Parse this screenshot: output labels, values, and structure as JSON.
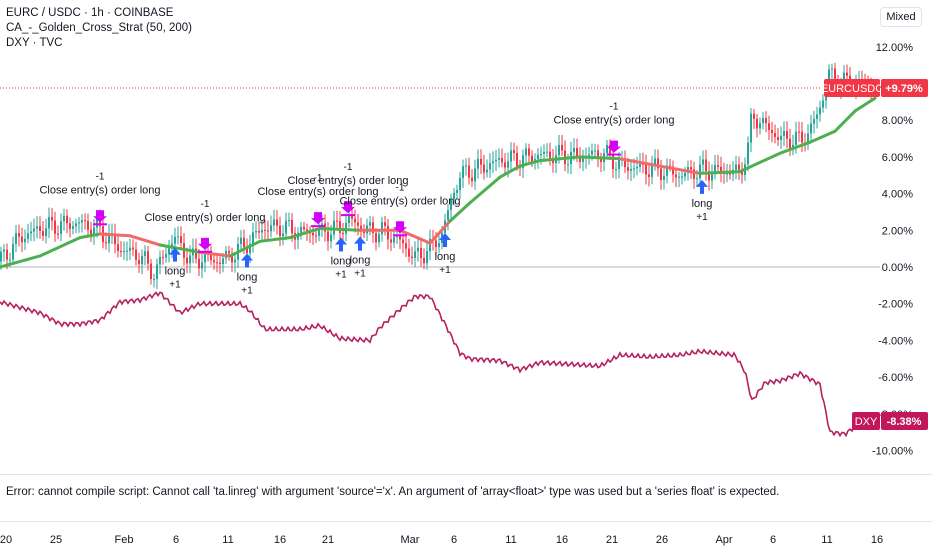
{
  "legend": {
    "symbol": "EURC / USDC · 1h · COINBASE",
    "strategy": "CA_-_Golden_Cross_Strat (50, 200)",
    "compare": "DXY · TVC"
  },
  "scale_mode_label": "Mixed",
  "error_message": "Error: cannot compile script: Cannot call 'ta.linreg' with argument 'source'='x'. An argument of 'array<float>' type was used but a 'series float' is expected.",
  "time_axis_labels": [
    "20",
    "25",
    "Feb",
    "6",
    "11",
    "16",
    "21",
    "Mar",
    "6",
    "11",
    "16",
    "21",
    "26",
    "Apr",
    "6",
    "11",
    "16"
  ],
  "price_axis_labels": [
    "12.00%",
    "10.00%",
    "8.00%",
    "6.00%",
    "4.00%",
    "2.00%",
    "0.00%",
    "-2.00%",
    "-4.00%",
    "-6.00%",
    "-8.00%",
    "-10.00%"
  ],
  "badges": {
    "eurcusdc": {
      "name": "EURCUSDC",
      "value": "+9.79%",
      "color": "#f23645"
    },
    "dxy": {
      "name": "DXY",
      "value": "-8.38%",
      "color": "#c2185b"
    }
  },
  "colors": {
    "up": "#26a69a",
    "down": "#f23645",
    "ma_up": "#4caf50",
    "ma_down": "#f06a6a",
    "dxy": "#b5205e",
    "entry": "#2962ff",
    "exit": "#d500f9"
  },
  "chart_data": {
    "type": "line",
    "title": "EURC / USDC · 1h · COINBASE",
    "ylim": [
      -11,
      12.5
    ],
    "series": [
      {
        "name": "EURCUSDC",
        "points": [
          [
            0,
            0.3
          ],
          [
            20,
            1.6
          ],
          [
            40,
            2.1
          ],
          [
            60,
            2.3
          ],
          [
            80,
            2.4
          ],
          [
            100,
            2.0
          ],
          [
            120,
            1.0
          ],
          [
            140,
            0.6
          ],
          [
            155,
            -0.4
          ],
          [
            165,
            0.8
          ],
          [
            175,
            1.6
          ],
          [
            190,
            0.4
          ],
          [
            205,
            0.5
          ],
          [
            220,
            0.3
          ],
          [
            235,
            0.8
          ],
          [
            250,
            1.4
          ],
          [
            262,
            2.1
          ],
          [
            280,
            2.2
          ],
          [
            300,
            1.9
          ],
          [
            320,
            1.9
          ],
          [
            340,
            2.1
          ],
          [
            350,
            2.6
          ],
          [
            365,
            2.0
          ],
          [
            385,
            1.9
          ],
          [
            400,
            1.4
          ],
          [
            415,
            0.5
          ],
          [
            430,
            1.0
          ],
          [
            442,
            1.8
          ],
          [
            452,
            3.8
          ],
          [
            460,
            5.0
          ],
          [
            480,
            5.4
          ],
          [
            500,
            5.8
          ],
          [
            520,
            5.9
          ],
          [
            540,
            6.1
          ],
          [
            560,
            6.1
          ],
          [
            580,
            6.0
          ],
          [
            600,
            6.2
          ],
          [
            610,
            6.0
          ],
          [
            620,
            5.5
          ],
          [
            640,
            5.4
          ],
          [
            660,
            5.3
          ],
          [
            680,
            5.0
          ],
          [
            700,
            5.3
          ],
          [
            720,
            5.2
          ],
          [
            740,
            5.2
          ],
          [
            748,
            6.4
          ],
          [
            752,
            8.3
          ],
          [
            765,
            7.7
          ],
          [
            780,
            7.0
          ],
          [
            800,
            6.9
          ],
          [
            810,
            7.4
          ],
          [
            822,
            9.0
          ],
          [
            828,
            10.6
          ],
          [
            835,
            10.2
          ],
          [
            850,
            10.0
          ],
          [
            870,
            9.8
          ]
        ]
      },
      {
        "name": "CA_-_Golden_Cross_Strat (50, 200)",
        "points": [
          [
            0,
            0.0
          ],
          [
            40,
            0.6
          ],
          [
            80,
            1.6
          ],
          [
            100,
            1.8
          ],
          [
            130,
            1.7
          ],
          [
            160,
            1.2
          ],
          [
            200,
            0.8
          ],
          [
            230,
            0.6
          ],
          [
            260,
            1.4
          ],
          [
            290,
            1.6
          ],
          [
            320,
            2.1
          ],
          [
            360,
            2.0
          ],
          [
            400,
            2.0
          ],
          [
            430,
            1.3
          ],
          [
            450,
            2.5
          ],
          [
            470,
            3.5
          ],
          [
            500,
            4.9
          ],
          [
            520,
            5.5
          ],
          [
            540,
            5.8
          ],
          [
            580,
            6.0
          ],
          [
            620,
            5.9
          ],
          [
            660,
            5.5
          ],
          [
            700,
            5.1
          ],
          [
            740,
            5.2
          ],
          [
            780,
            6.2
          ],
          [
            810,
            6.8
          ],
          [
            835,
            7.4
          ],
          [
            855,
            8.5
          ],
          [
            875,
            9.2
          ]
        ]
      },
      {
        "name": "DXY",
        "points": [
          [
            0,
            -1.9
          ],
          [
            20,
            -2.2
          ],
          [
            40,
            -2.5
          ],
          [
            60,
            -3.1
          ],
          [
            80,
            -3.1
          ],
          [
            100,
            -2.9
          ],
          [
            120,
            -1.9
          ],
          [
            140,
            -1.8
          ],
          [
            160,
            -1.4
          ],
          [
            180,
            -2.5
          ],
          [
            200,
            -2.0
          ],
          [
            240,
            -2.0
          ],
          [
            250,
            -2.4
          ],
          [
            265,
            -3.4
          ],
          [
            300,
            -3.4
          ],
          [
            320,
            -3.2
          ],
          [
            340,
            -3.9
          ],
          [
            370,
            -4.0
          ],
          [
            380,
            -3.3
          ],
          [
            400,
            -2.3
          ],
          [
            415,
            -1.6
          ],
          [
            430,
            -1.6
          ],
          [
            445,
            -3.1
          ],
          [
            460,
            -4.7
          ],
          [
            470,
            -5.0
          ],
          [
            500,
            -5.1
          ],
          [
            520,
            -5.6
          ],
          [
            540,
            -5.2
          ],
          [
            570,
            -5.3
          ],
          [
            600,
            -5.4
          ],
          [
            620,
            -4.8
          ],
          [
            650,
            -4.9
          ],
          [
            680,
            -4.8
          ],
          [
            700,
            -4.6
          ],
          [
            735,
            -4.8
          ],
          [
            745,
            -5.7
          ],
          [
            752,
            -7.3
          ],
          [
            765,
            -6.3
          ],
          [
            780,
            -6.2
          ],
          [
            800,
            -5.8
          ],
          [
            820,
            -6.4
          ],
          [
            830,
            -9.0
          ],
          [
            845,
            -9.1
          ],
          [
            860,
            -8.5
          ],
          [
            875,
            -8.4
          ]
        ]
      }
    ],
    "markers": [
      {
        "kind": "exit",
        "x": 100,
        "label": "Close entry(s) order long",
        "qty": "-1"
      },
      {
        "kind": "entry",
        "x": 175,
        "label": "long",
        "qty": "+1"
      },
      {
        "kind": "exit",
        "x": 205,
        "label": "Close entry(s) order long",
        "qty": "-1"
      },
      {
        "kind": "entry",
        "x": 247,
        "label": "long",
        "qty": "+1"
      },
      {
        "kind": "exit",
        "x": 318,
        "label": "Close entry(s) order long",
        "qty": "-1"
      },
      {
        "kind": "entry",
        "x": 341,
        "label": "long",
        "qty": "+1"
      },
      {
        "kind": "exit",
        "x": 348,
        "label": "Close entry(s) order long",
        "qty": "-1"
      },
      {
        "kind": "entry",
        "x": 360,
        "label": "long",
        "qty": "+1"
      },
      {
        "kind": "exit",
        "x": 400,
        "label": "Close entry(s) order long",
        "qty": "-1"
      },
      {
        "kind": "entry",
        "x": 445,
        "label": "long",
        "qty": "+1"
      },
      {
        "kind": "exit",
        "x": 614,
        "label": "Close entry(s) order long",
        "qty": "-1"
      },
      {
        "kind": "entry",
        "x": 702,
        "label": "long",
        "qty": "+1"
      }
    ]
  }
}
